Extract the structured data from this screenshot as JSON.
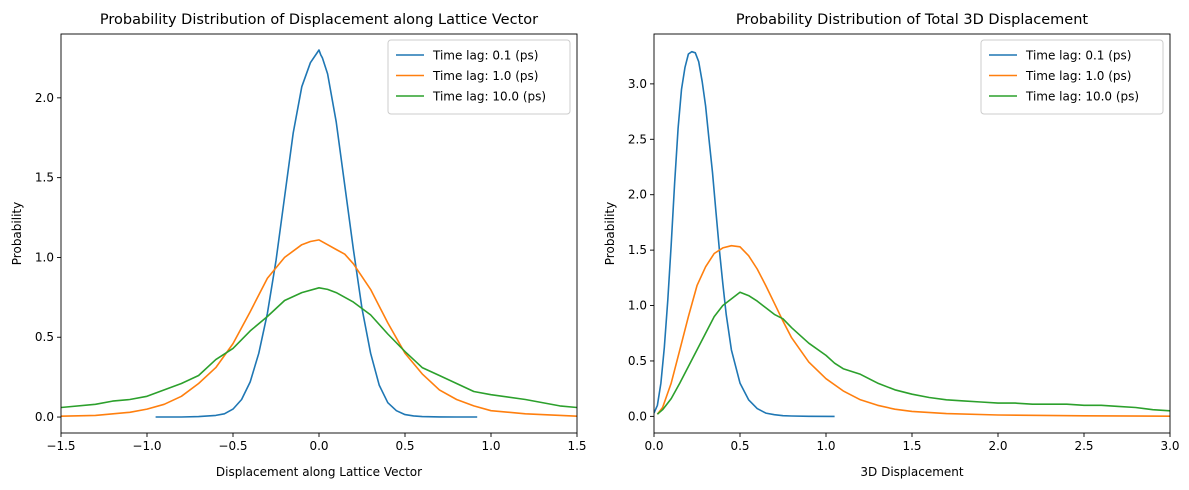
{
  "chart_data": [
    {
      "type": "line",
      "title": "Probability Distribution of Displacement along Lattice Vector",
      "xlabel": "Displacement along Lattice Vector",
      "ylabel": "Probability",
      "xlim": [
        -1.5,
        1.5
      ],
      "ylim": [
        -0.1,
        2.4
      ],
      "xticks": [
        -1.5,
        -1.0,
        -0.5,
        0.0,
        0.5,
        1.0,
        1.5
      ],
      "xtick_labels": [
        "−1.5",
        "−1.0",
        "−0.5",
        "0.0",
        "0.5",
        "1.0",
        "1.5"
      ],
      "yticks": [
        0.0,
        0.5,
        1.0,
        1.5,
        2.0
      ],
      "ytick_labels": [
        "0.0",
        "0.5",
        "1.0",
        "1.5",
        "2.0"
      ],
      "grid": false,
      "legend_position": "top-right",
      "series": [
        {
          "name": "Time lag: 0.1 (ps)",
          "color": "#1f77b4",
          "x": [
            -0.95,
            -0.8,
            -0.7,
            -0.6,
            -0.55,
            -0.5,
            -0.45,
            -0.4,
            -0.35,
            -0.3,
            -0.25,
            -0.2,
            -0.15,
            -0.1,
            -0.05,
            0.0,
            0.01,
            0.02,
            0.05,
            0.1,
            0.15,
            0.2,
            0.25,
            0.3,
            0.35,
            0.4,
            0.45,
            0.5,
            0.55,
            0.6,
            0.7,
            0.8,
            0.92
          ],
          "y": [
            0.0,
            0.0,
            0.003,
            0.01,
            0.02,
            0.05,
            0.11,
            0.22,
            0.4,
            0.65,
            0.98,
            1.38,
            1.78,
            2.07,
            2.22,
            2.3,
            2.27,
            2.25,
            2.15,
            1.85,
            1.45,
            1.05,
            0.68,
            0.4,
            0.2,
            0.09,
            0.04,
            0.015,
            0.007,
            0.003,
            0.001,
            0.0,
            0.0
          ]
        },
        {
          "name": "Time lag: 1.0 (ps)",
          "color": "#ff7f0e",
          "x": [
            -1.5,
            -1.3,
            -1.1,
            -1.0,
            -0.9,
            -0.8,
            -0.7,
            -0.6,
            -0.5,
            -0.4,
            -0.3,
            -0.2,
            -0.1,
            -0.05,
            0.0,
            0.05,
            0.1,
            0.15,
            0.2,
            0.3,
            0.4,
            0.5,
            0.6,
            0.7,
            0.8,
            0.9,
            1.0,
            1.2,
            1.5
          ],
          "y": [
            0.005,
            0.01,
            0.03,
            0.05,
            0.08,
            0.13,
            0.21,
            0.31,
            0.46,
            0.66,
            0.87,
            1.0,
            1.08,
            1.1,
            1.11,
            1.08,
            1.05,
            1.02,
            0.96,
            0.8,
            0.59,
            0.4,
            0.27,
            0.17,
            0.11,
            0.07,
            0.04,
            0.02,
            0.005
          ]
        },
        {
          "name": "Time lag: 10.0 (ps)",
          "color": "#2ca02c",
          "x": [
            -1.5,
            -1.3,
            -1.2,
            -1.1,
            -1.0,
            -0.9,
            -0.8,
            -0.7,
            -0.6,
            -0.5,
            -0.4,
            -0.3,
            -0.2,
            -0.1,
            0.0,
            0.05,
            0.1,
            0.2,
            0.3,
            0.4,
            0.5,
            0.6,
            0.7,
            0.8,
            0.9,
            1.0,
            1.2,
            1.4,
            1.5
          ],
          "y": [
            0.06,
            0.08,
            0.1,
            0.11,
            0.13,
            0.17,
            0.21,
            0.26,
            0.36,
            0.43,
            0.54,
            0.63,
            0.73,
            0.78,
            0.81,
            0.8,
            0.78,
            0.72,
            0.64,
            0.52,
            0.41,
            0.31,
            0.26,
            0.21,
            0.16,
            0.14,
            0.11,
            0.07,
            0.06
          ]
        }
      ]
    },
    {
      "type": "line",
      "title": "Probability Distribution of Total 3D Displacement",
      "xlabel": "3D Displacement",
      "ylabel": "Probability",
      "xlim": [
        0.0,
        3.0
      ],
      "ylim": [
        -0.15,
        3.45
      ],
      "xticks": [
        0.0,
        0.5,
        1.0,
        1.5,
        2.0,
        2.5,
        3.0
      ],
      "xtick_labels": [
        "0.0",
        "0.5",
        "1.0",
        "1.5",
        "2.0",
        "2.5",
        "3.0"
      ],
      "yticks": [
        0.0,
        0.5,
        1.0,
        1.5,
        2.0,
        2.5,
        3.0
      ],
      "ytick_labels": [
        "0.0",
        "0.5",
        "1.0",
        "1.5",
        "2.0",
        "2.5",
        "3.0"
      ],
      "grid": false,
      "legend_position": "top-right",
      "series": [
        {
          "name": "Time lag: 0.1 (ps)",
          "color": "#1f77b4",
          "x": [
            0.0,
            0.02,
            0.04,
            0.06,
            0.08,
            0.1,
            0.12,
            0.14,
            0.16,
            0.18,
            0.2,
            0.22,
            0.24,
            0.26,
            0.28,
            0.3,
            0.32,
            0.34,
            0.36,
            0.38,
            0.4,
            0.42,
            0.45,
            0.5,
            0.55,
            0.6,
            0.65,
            0.7,
            0.75,
            0.8,
            0.9,
            1.05
          ],
          "y": [
            0.03,
            0.1,
            0.3,
            0.62,
            1.05,
            1.55,
            2.1,
            2.6,
            2.95,
            3.15,
            3.27,
            3.29,
            3.28,
            3.2,
            3.02,
            2.8,
            2.5,
            2.2,
            1.85,
            1.5,
            1.2,
            0.92,
            0.6,
            0.3,
            0.15,
            0.07,
            0.03,
            0.015,
            0.006,
            0.003,
            0.001,
            0.0
          ]
        },
        {
          "name": "Time lag: 1.0 (ps)",
          "color": "#ff7f0e",
          "x": [
            0.02,
            0.05,
            0.1,
            0.15,
            0.2,
            0.25,
            0.3,
            0.35,
            0.4,
            0.45,
            0.5,
            0.55,
            0.6,
            0.65,
            0.7,
            0.75,
            0.8,
            0.9,
            1.0,
            1.1,
            1.2,
            1.3,
            1.4,
            1.5,
            1.7,
            2.0,
            2.5,
            3.0
          ],
          "y": [
            0.02,
            0.08,
            0.3,
            0.6,
            0.9,
            1.18,
            1.35,
            1.47,
            1.52,
            1.54,
            1.53,
            1.45,
            1.33,
            1.18,
            1.02,
            0.86,
            0.71,
            0.49,
            0.34,
            0.23,
            0.15,
            0.1,
            0.065,
            0.045,
            0.025,
            0.012,
            0.005,
            0.002
          ]
        },
        {
          "name": "Time lag: 10.0 (ps)",
          "color": "#2ca02c",
          "x": [
            0.02,
            0.05,
            0.1,
            0.15,
            0.2,
            0.25,
            0.3,
            0.35,
            0.4,
            0.45,
            0.5,
            0.55,
            0.6,
            0.65,
            0.7,
            0.75,
            0.8,
            0.9,
            1.0,
            1.05,
            1.1,
            1.2,
            1.3,
            1.4,
            1.5,
            1.6,
            1.7,
            1.8,
            1.9,
            2.0,
            2.1,
            2.2,
            2.3,
            2.4,
            2.5,
            2.55,
            2.6,
            2.7,
            2.8,
            2.9,
            3.0
          ],
          "y": [
            0.02,
            0.06,
            0.16,
            0.3,
            0.45,
            0.6,
            0.75,
            0.9,
            1.0,
            1.06,
            1.12,
            1.09,
            1.04,
            0.98,
            0.92,
            0.88,
            0.8,
            0.66,
            0.55,
            0.48,
            0.43,
            0.38,
            0.3,
            0.24,
            0.2,
            0.17,
            0.15,
            0.14,
            0.13,
            0.12,
            0.12,
            0.11,
            0.11,
            0.11,
            0.1,
            0.1,
            0.1,
            0.09,
            0.08,
            0.06,
            0.05
          ]
        }
      ]
    }
  ]
}
